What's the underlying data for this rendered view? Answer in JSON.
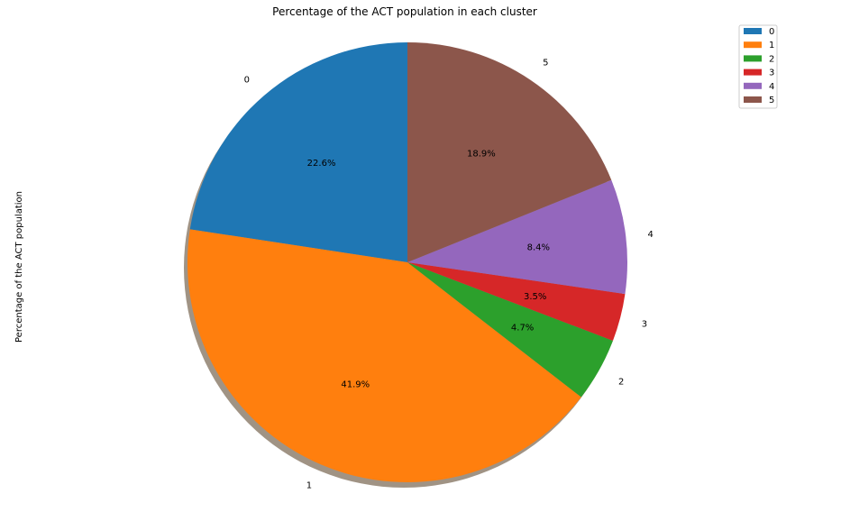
{
  "chart_data": {
    "type": "pie",
    "title": "Percentage of the ACT population in each cluster",
    "ylabel": "Percentage of the ACT population",
    "categories": [
      "0",
      "1",
      "2",
      "3",
      "4",
      "5"
    ],
    "values": [
      22.6,
      41.9,
      4.7,
      3.5,
      8.4,
      18.9
    ],
    "value_labels": [
      "22.6%",
      "41.9%",
      "4.7%",
      "3.5%",
      "8.4%",
      "18.9%"
    ],
    "colors": [
      "#1f77b4",
      "#ff7f0e",
      "#2ca02c",
      "#d62728",
      "#9467bd",
      "#8c564b"
    ],
    "start_angle_deg": 90,
    "direction": "counterclockwise",
    "shadow": true,
    "legend": {
      "placement": "top-right",
      "entries": [
        "0",
        "1",
        "2",
        "3",
        "4",
        "5"
      ]
    }
  }
}
